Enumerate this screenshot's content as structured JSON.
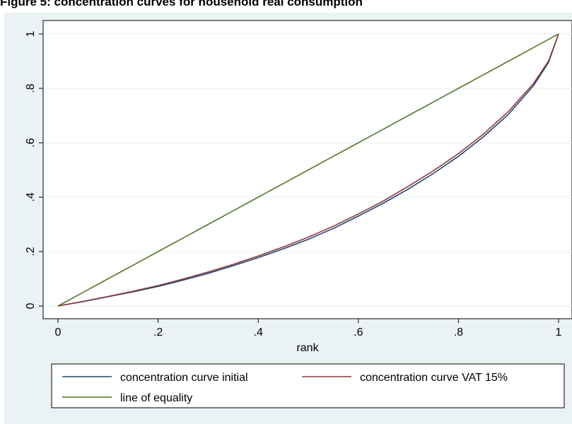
{
  "figure_title": "Figure 5: concentration curves for household real consumption",
  "chart_data": {
    "type": "line",
    "title": "",
    "xlabel": "rank",
    "ylabel": "",
    "xlim": [
      0,
      1
    ],
    "ylim": [
      0,
      1
    ],
    "x_ticks": [
      {
        "value": 0,
        "label": "0"
      },
      {
        "value": 0.2,
        "label": ".2"
      },
      {
        "value": 0.4,
        "label": ".4"
      },
      {
        "value": 0.6,
        "label": ".6"
      },
      {
        "value": 0.8,
        "label": ".8"
      },
      {
        "value": 1,
        "label": "1"
      }
    ],
    "y_ticks": [
      {
        "value": 0,
        "label": "0"
      },
      {
        "value": 0.2,
        "label": ".2"
      },
      {
        "value": 0.4,
        "label": ".4"
      },
      {
        "value": 0.6,
        "label": ".6"
      },
      {
        "value": 0.8,
        "label": ".8"
      },
      {
        "value": 1,
        "label": "1"
      }
    ],
    "grid": true,
    "legend_position": "bottom",
    "x": [
      0,
      0.05,
      0.1,
      0.15,
      0.2,
      0.25,
      0.3,
      0.35,
      0.4,
      0.45,
      0.5,
      0.55,
      0.6,
      0.65,
      0.7,
      0.75,
      0.8,
      0.85,
      0.9,
      0.95,
      0.98,
      1
    ],
    "series": [
      {
        "name": "concentration curve initial",
        "color": "#1a476f",
        "values": [
          0,
          0.016,
          0.034,
          0.052,
          0.072,
          0.095,
          0.12,
          0.148,
          0.178,
          0.21,
          0.245,
          0.285,
          0.33,
          0.378,
          0.43,
          0.487,
          0.55,
          0.622,
          0.705,
          0.81,
          0.895,
          1
        ]
      },
      {
        "name": "concentration curve VAT 15%",
        "color": "#90353b",
        "values": [
          0,
          0.017,
          0.035,
          0.054,
          0.075,
          0.099,
          0.125,
          0.153,
          0.184,
          0.217,
          0.253,
          0.293,
          0.338,
          0.386,
          0.44,
          0.497,
          0.56,
          0.632,
          0.715,
          0.818,
          0.9,
          1
        ]
      },
      {
        "name": "line of equality",
        "color": "#55752f",
        "values": [
          0,
          0.05,
          0.1,
          0.15,
          0.2,
          0.25,
          0.3,
          0.35,
          0.4,
          0.45,
          0.5,
          0.55,
          0.6,
          0.65,
          0.7,
          0.75,
          0.8,
          0.85,
          0.9,
          0.95,
          0.98,
          1
        ]
      }
    ]
  }
}
